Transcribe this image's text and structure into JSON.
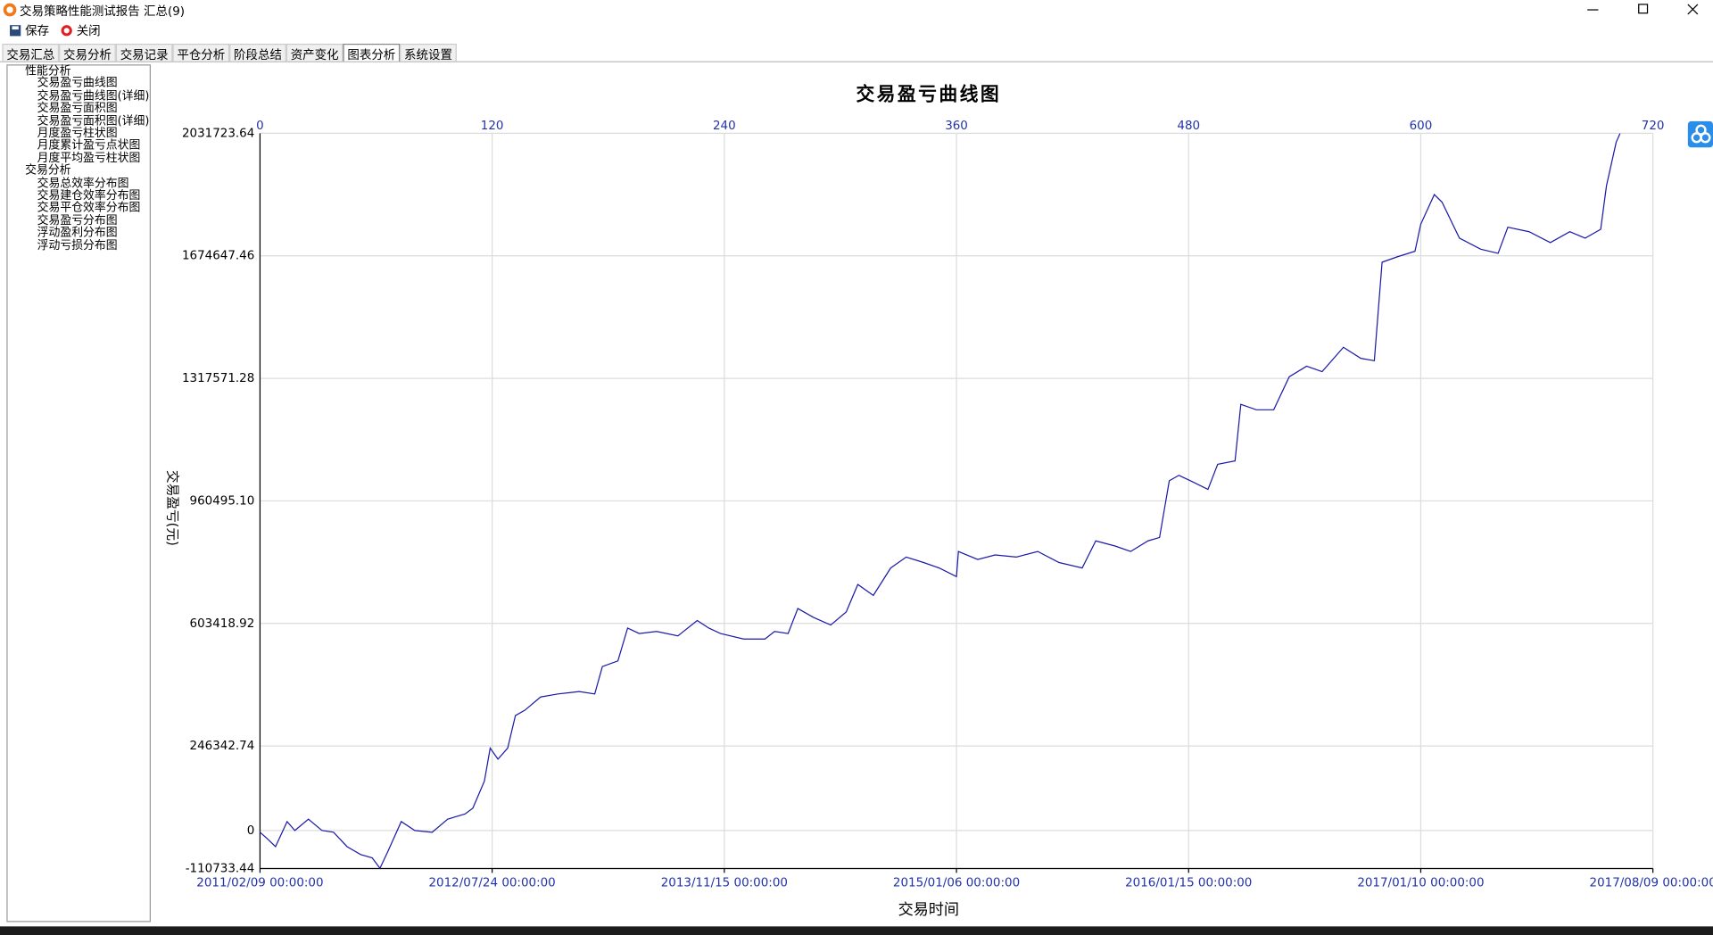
{
  "window": {
    "title": "交易策略性能测试报告 汇总(9)"
  },
  "toolbar": [
    "保存",
    "关闭"
  ],
  "tabs": [
    "交易汇总",
    "交易分析",
    "交易记录",
    "平仓分析",
    "阶段总结",
    "资产变化",
    "图表分析",
    "系统设置"
  ],
  "tree": [
    {
      "label": "性能分析",
      "children": [
        "交易盈亏曲线图",
        "交易盈亏曲线图(详细)",
        "交易盈亏面积图",
        "交易盈亏面积图(详细)",
        "月度盈亏柱状图",
        "月度累计盈亏点状图",
        "月度平均盈亏柱状图"
      ]
    },
    {
      "label": "交易分析",
      "children": [
        "交易总效率分布图",
        "交易建仓效率分布图",
        "交易平仓效率分布图",
        "交易盈亏分布图",
        "浮动盈利分布图",
        "浮动亏损分布图"
      ]
    }
  ],
  "chart_data": {
    "type": "line",
    "title": "交易盈亏曲线图",
    "y_label": "交易盈亏(元)",
    "x_label": "交易时间",
    "color": "#1a1aa8",
    "grid": true,
    "xlim": [
      0,
      720
    ],
    "xticks": [
      0,
      120,
      240,
      360,
      480,
      600,
      720
    ],
    "date_ticks": [
      {
        "value": 0,
        "label": "2011/02/09 00:00:00"
      },
      {
        "value": 120,
        "label": "2012/07/24 00:00:00"
      },
      {
        "value": 240,
        "label": "2013/11/15 00:00:00"
      },
      {
        "value": 360,
        "label": "2015/01/06 00:00:00"
      },
      {
        "value": 480,
        "label": "2016/01/15 00:00:00"
      },
      {
        "value": 600,
        "label": "2017/01/10 00:00:00"
      },
      {
        "value": 720,
        "label": "2017/08/09 00:00:00"
      }
    ],
    "ylim": [
      -110733.44,
      2031723.64
    ],
    "yticks": [
      -110733.44,
      0,
      246342.74,
      603418.92,
      {
        "value": 960495.1,
        "label": "960495.10"
      },
      1317571.28,
      1674647.46,
      2031723.64
    ],
    "x": [
      0,
      4,
      8,
      14,
      18,
      25,
      32,
      38,
      45,
      52,
      58,
      62,
      66,
      73,
      80,
      89,
      97,
      106,
      110,
      116,
      119,
      123,
      128,
      132,
      137,
      145,
      154,
      165,
      173,
      177,
      185,
      190,
      196,
      205,
      216,
      226,
      232,
      238,
      250,
      261,
      266,
      273,
      278,
      286,
      295,
      303,
      309,
      317,
      326,
      334,
      343,
      351,
      360,
      361,
      371,
      380,
      391,
      402,
      413,
      425,
      432,
      442,
      450,
      459,
      465,
      470,
      475,
      481,
      490,
      495,
      504,
      507,
      515,
      524,
      532,
      541,
      549,
      560,
      569,
      576,
      580,
      588,
      597,
      600,
      607,
      611,
      620,
      631,
      640,
      645,
      656,
      667,
      677,
      685,
      693,
      696,
      701,
      703
    ],
    "values": [
      -5000,
      -25000,
      -47000,
      26000,
      0,
      33000,
      0,
      -5000,
      -47000,
      -70000,
      -80000,
      -110000,
      -62000,
      26000,
      0,
      -5000,
      33000,
      48000,
      65000,
      144000,
      240000,
      208000,
      240000,
      335000,
      351000,
      389000,
      398000,
      405000,
      398000,
      478000,
      494000,
      590000,
      574000,
      580000,
      567000,
      612000,
      590000,
      574000,
      558000,
      558000,
      580000,
      574000,
      647000,
      621000,
      599000,
      637000,
      717000,
      685000,
      765000,
      797000,
      781000,
      765000,
      740000,
      813000,
      790000,
      803000,
      797000,
      813000,
      781000,
      765000,
      844000,
      829000,
      813000,
      844000,
      854000,
      1019000,
      1035000,
      1019000,
      994000,
      1067000,
      1077000,
      1242000,
      1226000,
      1226000,
      1322000,
      1353000,
      1337000,
      1408000,
      1376000,
      1369000,
      1656000,
      1672000,
      1688000,
      1767000,
      1853000,
      1831000,
      1726000,
      1694000,
      1682000,
      1758000,
      1745000,
      1713000,
      1745000,
      1726000,
      1752000,
      1879000,
      2006000,
      2031000
    ]
  }
}
